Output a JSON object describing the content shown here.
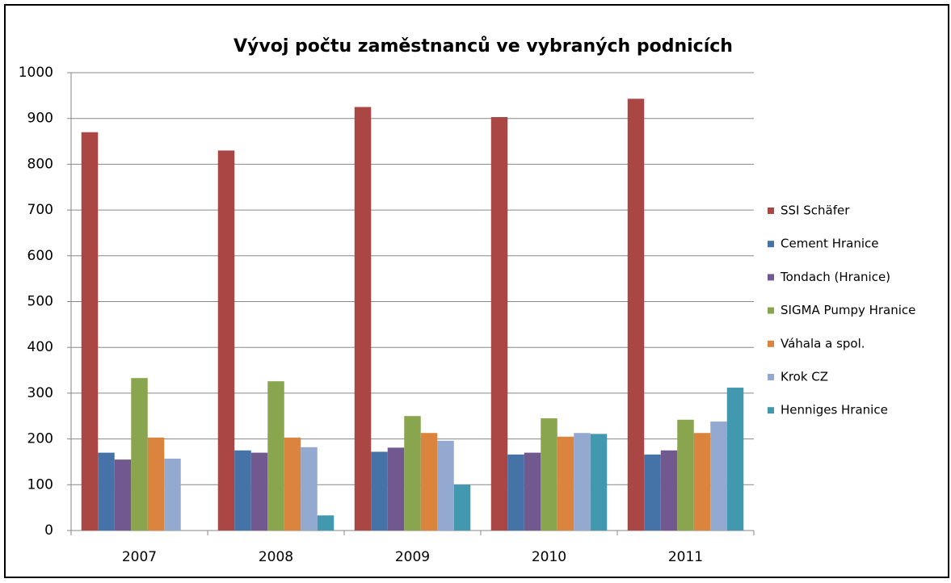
{
  "chart_data": {
    "type": "bar",
    "title": "Vývoj počtu zaměstnanců ve vybraných podnicích",
    "categories": [
      "2007",
      "2008",
      "2009",
      "2010",
      "2011"
    ],
    "series": [
      {
        "name": "SSI Schäfer",
        "color": "#aa4643",
        "values": [
          870,
          830,
          925,
          903,
          943
        ]
      },
      {
        "name": "Cement Hranice",
        "color": "#4572a7",
        "values": [
          170,
          175,
          172,
          166,
          166
        ]
      },
      {
        "name": "Tondach (Hranice)",
        "color": "#71588f",
        "values": [
          155,
          170,
          181,
          170,
          175
        ]
      },
      {
        "name": "SIGMA Pumpy Hranice",
        "color": "#89a54e",
        "values": [
          333,
          326,
          250,
          245,
          242
        ]
      },
      {
        "name": "Váhala a spol.",
        "color": "#db843d",
        "values": [
          203,
          203,
          213,
          205,
          213
        ]
      },
      {
        "name": "Krok CZ",
        "color": "#93a9cf",
        "values": [
          157,
          182,
          196,
          213,
          238
        ]
      },
      {
        "name": "Henniges Hranice",
        "color": "#4198af",
        "values": [
          null,
          33,
          100,
          211,
          312
        ]
      }
    ],
    "ylim": [
      0,
      1000
    ],
    "yticks": [
      0,
      100,
      200,
      300,
      400,
      500,
      600,
      700,
      800,
      900,
      1000
    ],
    "grid": true,
    "legend": "right"
  }
}
